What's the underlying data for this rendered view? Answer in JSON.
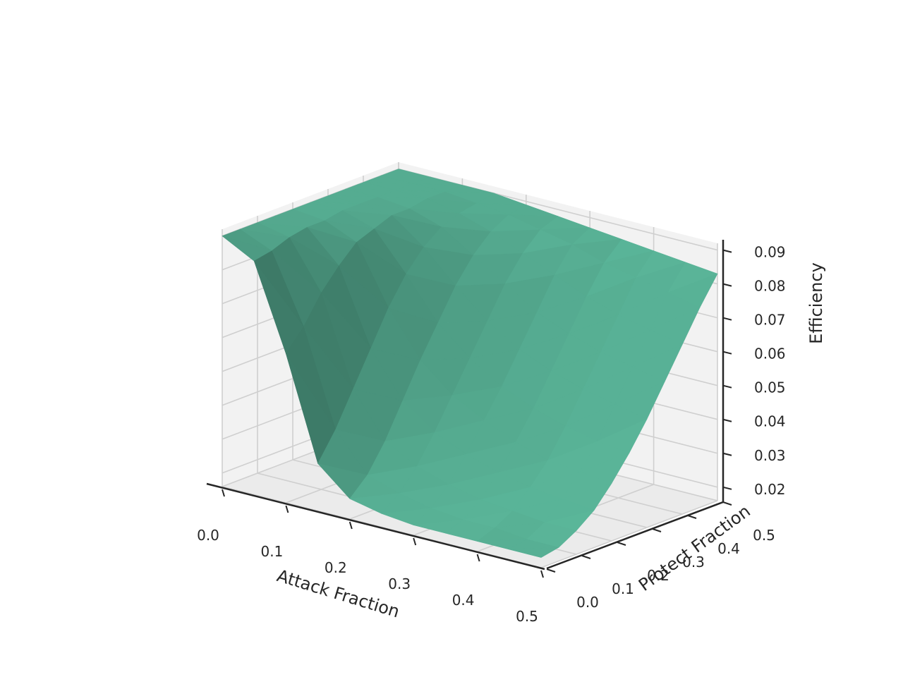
{
  "chart_data": {
    "type": "surface3d",
    "title": "",
    "xlabel": "Attack Fraction",
    "ylabel": "Protect Fraction",
    "zlabel": "Efficiency",
    "xlim": [
      0.0,
      0.5
    ],
    "ylim": [
      0.0,
      0.5
    ],
    "zlim": [
      0.016,
      0.092
    ],
    "x_ticks": [
      "0.0",
      "0.1",
      "0.2",
      "0.3",
      "0.4",
      "0.5"
    ],
    "y_ticks": [
      "0.0",
      "0.1",
      "0.2",
      "0.3",
      "0.4",
      "0.5"
    ],
    "z_ticks": [
      "0.02",
      "0.03",
      "0.04",
      "0.05",
      "0.06",
      "0.07",
      "0.08",
      "0.09"
    ],
    "grid": true,
    "surface_color": "#59b397",
    "x": [
      0.0,
      0.05,
      0.1,
      0.15,
      0.2,
      0.25,
      0.3,
      0.35,
      0.4,
      0.45,
      0.5
    ],
    "y": [
      0.0,
      0.05,
      0.1,
      0.15,
      0.2,
      0.25,
      0.3,
      0.35,
      0.4,
      0.45,
      0.5
    ],
    "z": [
      [
        0.09,
        0.09,
        0.09,
        0.09,
        0.09,
        0.09,
        0.09,
        0.09,
        0.09,
        0.09,
        0.09
      ],
      [
        0.085,
        0.086,
        0.088,
        0.089,
        0.089,
        0.09,
        0.09,
        0.09,
        0.09,
        0.09,
        0.09
      ],
      [
        0.06,
        0.066,
        0.074,
        0.08,
        0.085,
        0.087,
        0.089,
        0.089,
        0.09,
        0.09,
        0.09
      ],
      [
        0.03,
        0.038,
        0.048,
        0.058,
        0.068,
        0.076,
        0.082,
        0.086,
        0.088,
        0.089,
        0.09
      ],
      [
        0.022,
        0.027,
        0.035,
        0.045,
        0.055,
        0.064,
        0.073,
        0.08,
        0.085,
        0.088,
        0.089
      ],
      [
        0.02,
        0.024,
        0.03,
        0.038,
        0.047,
        0.056,
        0.065,
        0.074,
        0.081,
        0.086,
        0.088
      ],
      [
        0.019,
        0.022,
        0.027,
        0.034,
        0.042,
        0.05,
        0.059,
        0.068,
        0.077,
        0.084,
        0.087
      ],
      [
        0.019,
        0.021,
        0.025,
        0.031,
        0.038,
        0.046,
        0.055,
        0.064,
        0.073,
        0.081,
        0.086
      ],
      [
        0.019,
        0.021,
        0.024,
        0.029,
        0.035,
        0.043,
        0.052,
        0.061,
        0.07,
        0.079,
        0.085
      ],
      [
        0.019,
        0.02,
        0.023,
        0.028,
        0.034,
        0.041,
        0.05,
        0.059,
        0.068,
        0.077,
        0.084
      ],
      [
        0.019,
        0.02,
        0.023,
        0.027,
        0.033,
        0.04,
        0.048,
        0.057,
        0.066,
        0.075,
        0.083
      ]
    ]
  }
}
